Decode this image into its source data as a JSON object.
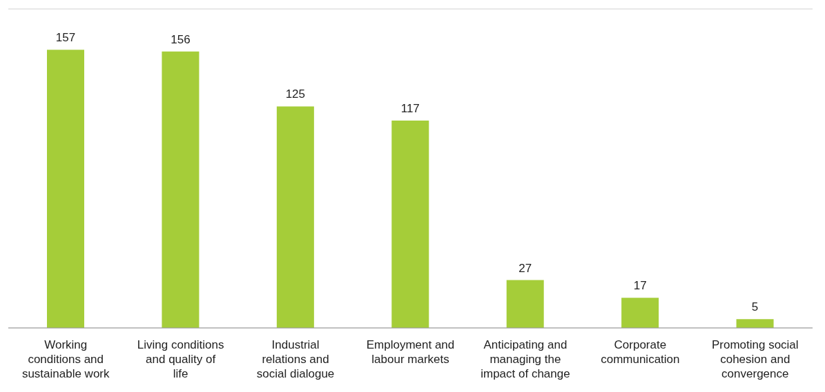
{
  "chart_data": {
    "type": "bar",
    "categories": [
      "Working conditions and sustainable work",
      "Living conditions and quality of life",
      "Industrial relations and social dialogue",
      "Employment and labour markets",
      "Anticipating and managing the impact of change",
      "Corporate communication",
      "Promoting social cohesion and convergence"
    ],
    "values": [
      157,
      156,
      125,
      117,
      27,
      17,
      5
    ],
    "color": "#a5cd39",
    "ylim": [
      0,
      180
    ],
    "tick_labels": "x",
    "grid": "y",
    "data_labels": true
  }
}
